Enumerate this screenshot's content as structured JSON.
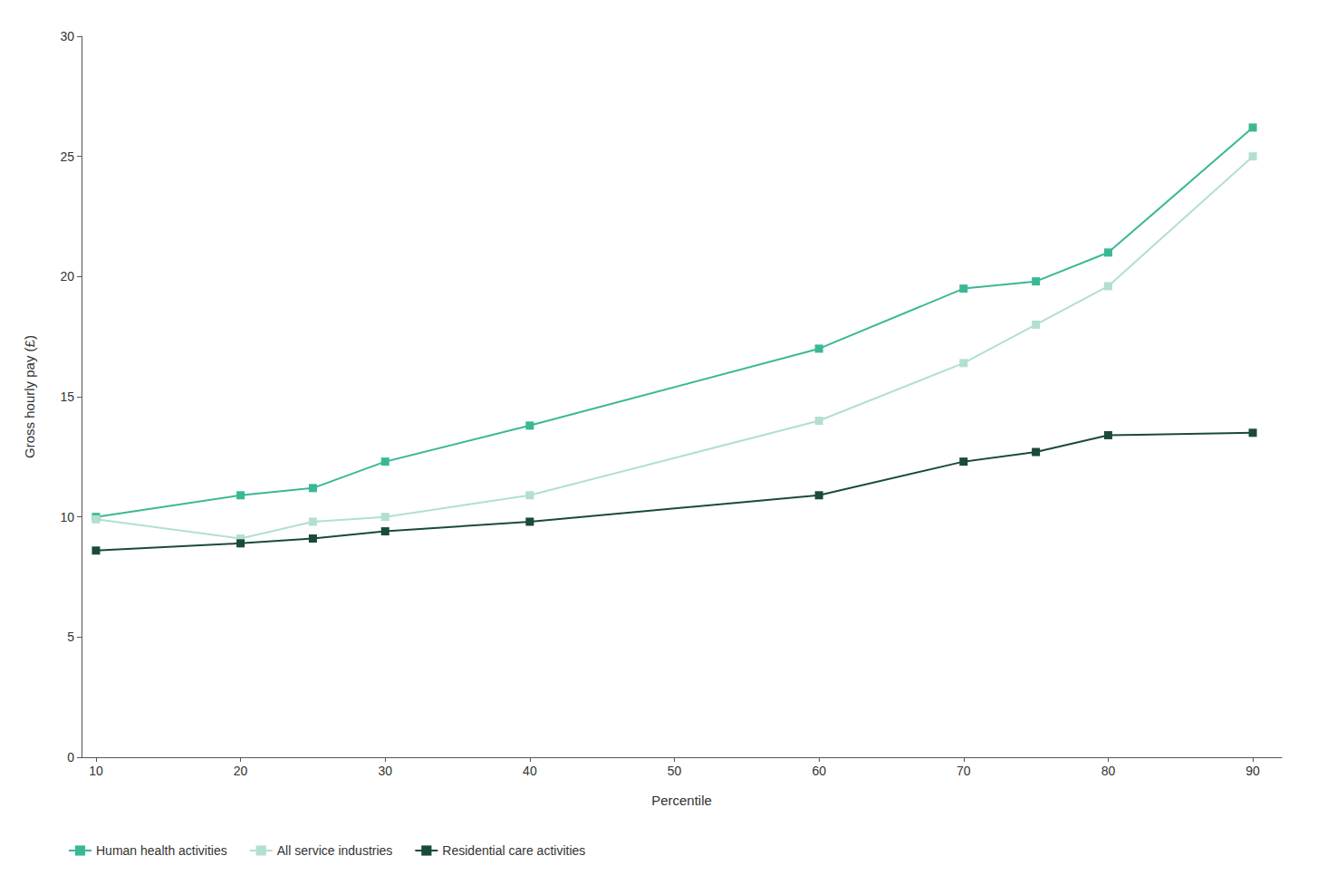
{
  "chart_data": {
    "type": "line",
    "x": [
      10,
      20,
      25,
      30,
      40,
      60,
      70,
      75,
      80,
      90
    ],
    "series": [
      {
        "name": "Human health activities",
        "color": "#3ab896",
        "values": [
          10.0,
          10.9,
          11.2,
          12.3,
          13.8,
          17.0,
          19.5,
          19.8,
          21.0,
          26.2
        ]
      },
      {
        "name": "All service industries",
        "color": "#b2dfd0",
        "values": [
          9.9,
          9.1,
          9.8,
          10.0,
          10.9,
          14.0,
          16.4,
          18.0,
          19.6,
          25.0
        ]
      },
      {
        "name": "Residential care activities",
        "color": "#1a4a3c",
        "values": [
          8.6,
          8.9,
          9.1,
          9.4,
          9.8,
          10.9,
          12.3,
          12.7,
          13.4,
          13.5
        ]
      }
    ],
    "xlabel": "Percentile",
    "ylabel": "Gross hourly pay (£)",
    "xlim": [
      9,
      92
    ],
    "xticks": [
      10,
      20,
      30,
      40,
      50,
      60,
      70,
      80,
      90
    ],
    "ylim": [
      0,
      30
    ],
    "yticks": [
      0,
      5,
      10,
      15,
      20,
      25,
      30
    ],
    "grid": false,
    "legend": "bottom left",
    "marker": "square"
  }
}
